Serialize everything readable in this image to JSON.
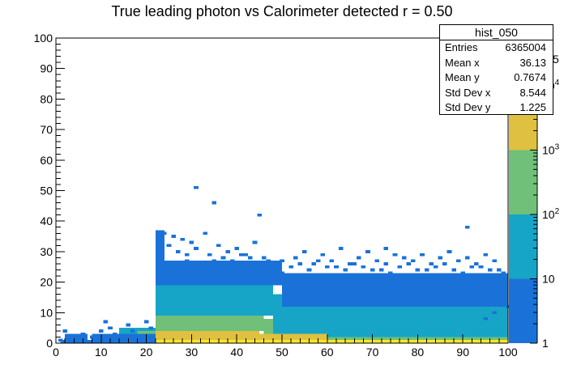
{
  "chart_data": {
    "type": "heatmap",
    "title": "True leading photon vs Calorimeter detected r = 0.50",
    "xlabel": "",
    "ylabel": "",
    "xlim": [
      0,
      100
    ],
    "ylim": [
      0,
      100
    ],
    "x_ticks": [
      0,
      10,
      20,
      30,
      40,
      50,
      60,
      70,
      80,
      90,
      100
    ],
    "y_ticks": [
      0,
      10,
      20,
      30,
      40,
      50,
      60,
      70,
      80,
      90,
      100
    ],
    "bin_width": 1,
    "log_z": true,
    "colorbar": {
      "ticks": [
        {
          "value": 1,
          "label": "1"
        },
        {
          "value": 10,
          "label": "10"
        },
        {
          "value": 100,
          "label": "10",
          "exp": "2"
        },
        {
          "value": 1000,
          "label": "10",
          "exp": "3"
        },
        {
          "value": 10000,
          "label": "10",
          "exp": "4"
        }
      ],
      "visible_top_fragment": "5",
      "bands": [
        {
          "from": 1,
          "to": 10,
          "color": "#1a72d9"
        },
        {
          "from": 10,
          "to": 100,
          "color": "#17a5c7"
        },
        {
          "from": 100,
          "to": 1000,
          "color": "#70c07a"
        },
        {
          "from": 1000,
          "to": 10000,
          "color": "#e0c040"
        },
        {
          "from": 10000,
          "to": 100000,
          "color": "#f7e722"
        }
      ]
    },
    "regions": [
      {
        "x": [
          22,
          100
        ],
        "y": [
          0,
          1
        ],
        "level": 4
      },
      {
        "x": [
          22,
          45
        ],
        "y": [
          1,
          4
        ],
        "level": 3
      },
      {
        "x": [
          45,
          60
        ],
        "y": [
          1,
          3
        ],
        "level": 3
      },
      {
        "x": [
          60,
          100
        ],
        "y": [
          1,
          2
        ],
        "level": 2
      },
      {
        "x": [
          22,
          30
        ],
        "y": [
          4,
          9
        ],
        "level": 2
      },
      {
        "x": [
          30,
          46
        ],
        "y": [
          4,
          14
        ],
        "level": 2
      },
      {
        "x": [
          46,
          60
        ],
        "y": [
          3,
          8
        ],
        "level": 2
      },
      {
        "x": [
          22,
          48
        ],
        "y": [
          9,
          19
        ],
        "level": 1
      },
      {
        "x": [
          48,
          70
        ],
        "y": [
          3,
          16
        ],
        "level": 1
      },
      {
        "x": [
          60,
          100
        ],
        "y": [
          2,
          10
        ],
        "level": 1
      },
      {
        "x": [
          70,
          100
        ],
        "y": [
          10,
          12
        ],
        "level": 1
      },
      {
        "x": [
          22,
          50
        ],
        "y": [
          19,
          27
        ],
        "level": 0
      },
      {
        "x": [
          50,
          100
        ],
        "y": [
          12,
          23
        ],
        "level": 0
      },
      {
        "x": [
          22,
          24
        ],
        "y": [
          27,
          37
        ],
        "level": 0
      },
      {
        "x": [
          1,
          22
        ],
        "y": [
          0,
          1
        ],
        "level": 0
      },
      {
        "x": [
          2,
          7
        ],
        "y": [
          1,
          3
        ],
        "level": 0
      },
      {
        "x": [
          8,
          22
        ],
        "y": [
          1,
          3
        ],
        "level": 0
      },
      {
        "x": [
          14,
          22
        ],
        "y": [
          3,
          5
        ],
        "level": 1
      },
      {
        "x": [
          18,
          22
        ],
        "y": [
          3,
          4
        ],
        "level": 2
      }
    ],
    "sparse_cells": [
      [
        31,
        51
      ],
      [
        35,
        46
      ],
      [
        45,
        42
      ],
      [
        24,
        36
      ],
      [
        26,
        35
      ],
      [
        28,
        34
      ],
      [
        30,
        33
      ],
      [
        33,
        36
      ],
      [
        36,
        32
      ],
      [
        38,
        30
      ],
      [
        40,
        31
      ],
      [
        42,
        29
      ],
      [
        44,
        33
      ],
      [
        46,
        28
      ],
      [
        25,
        32
      ],
      [
        27,
        30
      ],
      [
        29,
        29
      ],
      [
        31,
        31
      ],
      [
        34,
        29
      ],
      [
        37,
        28
      ],
      [
        39,
        27
      ],
      [
        41,
        29
      ],
      [
        43,
        28
      ],
      [
        47,
        27
      ],
      [
        50,
        27
      ],
      [
        53,
        28
      ],
      [
        55,
        30
      ],
      [
        57,
        26
      ],
      [
        59,
        29
      ],
      [
        61,
        27
      ],
      [
        63,
        31
      ],
      [
        65,
        26
      ],
      [
        67,
        28
      ],
      [
        69,
        30
      ],
      [
        71,
        27
      ],
      [
        73,
        26
      ],
      [
        75,
        29
      ],
      [
        77,
        28
      ],
      [
        79,
        27
      ],
      [
        81,
        29
      ],
      [
        83,
        26
      ],
      [
        85,
        28
      ],
      [
        87,
        30
      ],
      [
        89,
        27
      ],
      [
        91,
        28
      ],
      [
        93,
        26
      ],
      [
        95,
        29
      ],
      [
        97,
        27
      ],
      [
        91,
        38
      ],
      [
        73,
        31
      ],
      [
        52,
        25
      ],
      [
        56,
        24
      ],
      [
        60,
        25
      ],
      [
        64,
        24
      ],
      [
        68,
        25
      ],
      [
        72,
        24
      ],
      [
        76,
        25
      ],
      [
        80,
        24
      ],
      [
        84,
        25
      ],
      [
        88,
        24
      ],
      [
        92,
        25
      ],
      [
        96,
        24
      ],
      [
        99,
        23
      ],
      [
        54,
        26
      ],
      [
        58,
        27
      ],
      [
        62,
        25
      ],
      [
        66,
        26
      ],
      [
        70,
        24
      ],
      [
        74,
        23
      ],
      [
        78,
        26
      ],
      [
        82,
        24
      ],
      [
        86,
        26
      ],
      [
        90,
        23
      ],
      [
        94,
        25
      ],
      [
        98,
        24
      ],
      [
        49,
        24
      ],
      [
        23,
        25
      ],
      [
        26,
        26
      ],
      [
        29,
        27
      ],
      [
        32,
        26
      ],
      [
        35,
        27
      ],
      [
        38,
        26
      ],
      [
        41,
        26
      ],
      [
        44,
        25
      ],
      [
        47,
        25
      ],
      [
        50,
        23
      ],
      [
        100,
        12
      ],
      [
        96,
        14
      ],
      [
        93,
        19
      ],
      [
        88,
        21
      ],
      [
        84,
        22
      ],
      [
        99,
        18
      ],
      [
        97,
        10
      ],
      [
        95,
        8
      ],
      [
        12,
        5
      ],
      [
        10,
        4
      ],
      [
        8,
        2
      ],
      [
        2,
        4
      ],
      [
        6,
        3
      ],
      [
        11,
        7
      ],
      [
        13,
        3
      ],
      [
        16,
        6
      ],
      [
        17,
        4
      ],
      [
        20,
        7
      ],
      [
        21,
        5
      ],
      [
        4,
        2
      ],
      [
        1,
        1
      ]
    ]
  },
  "stats": {
    "name": "hist_050",
    "rows": [
      {
        "key": "Entries",
        "value": "6365004"
      },
      {
        "key": "Mean x",
        "value": "36.13"
      },
      {
        "key": "Mean y",
        "value": "0.7674"
      },
      {
        "key": "Std Dev x",
        "value": "8.544"
      },
      {
        "key": "Std Dev y",
        "value": "1.225"
      }
    ]
  }
}
